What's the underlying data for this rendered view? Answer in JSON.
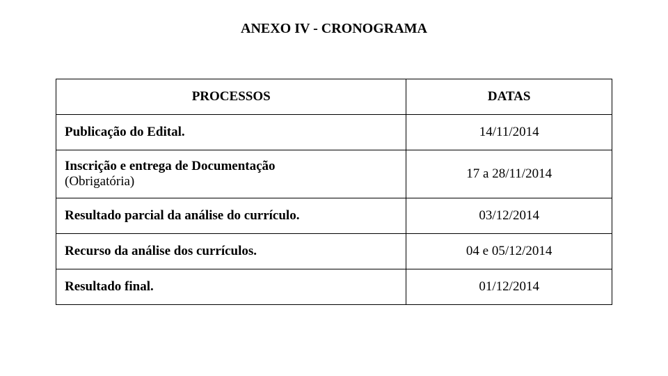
{
  "title": "ANEXO IV - CRONOGRAMA",
  "table": {
    "headers": {
      "processos": "PROCESSOS",
      "datas": "DATAS"
    },
    "rows": [
      {
        "process": "Publicação do Edital.",
        "date": "14/11/2014"
      },
      {
        "process_line1": "Inscrição e entrega de Documentação",
        "process_line2": "(Obrigatória)",
        "date": "17 a 28/11/2014"
      },
      {
        "process": "Resultado parcial da análise do currículo.",
        "date": "03/12/2014"
      },
      {
        "process": "Recurso da análise dos currículos.",
        "date": "04 e 05/12/2014"
      },
      {
        "process": "Resultado final.",
        "date": "01/12/2014"
      }
    ]
  },
  "styling": {
    "background_color": "#ffffff",
    "text_color": "#000000",
    "border_color": "#000000",
    "title_fontsize": 20,
    "body_fontsize": 19,
    "font_family": "Times New Roman"
  }
}
